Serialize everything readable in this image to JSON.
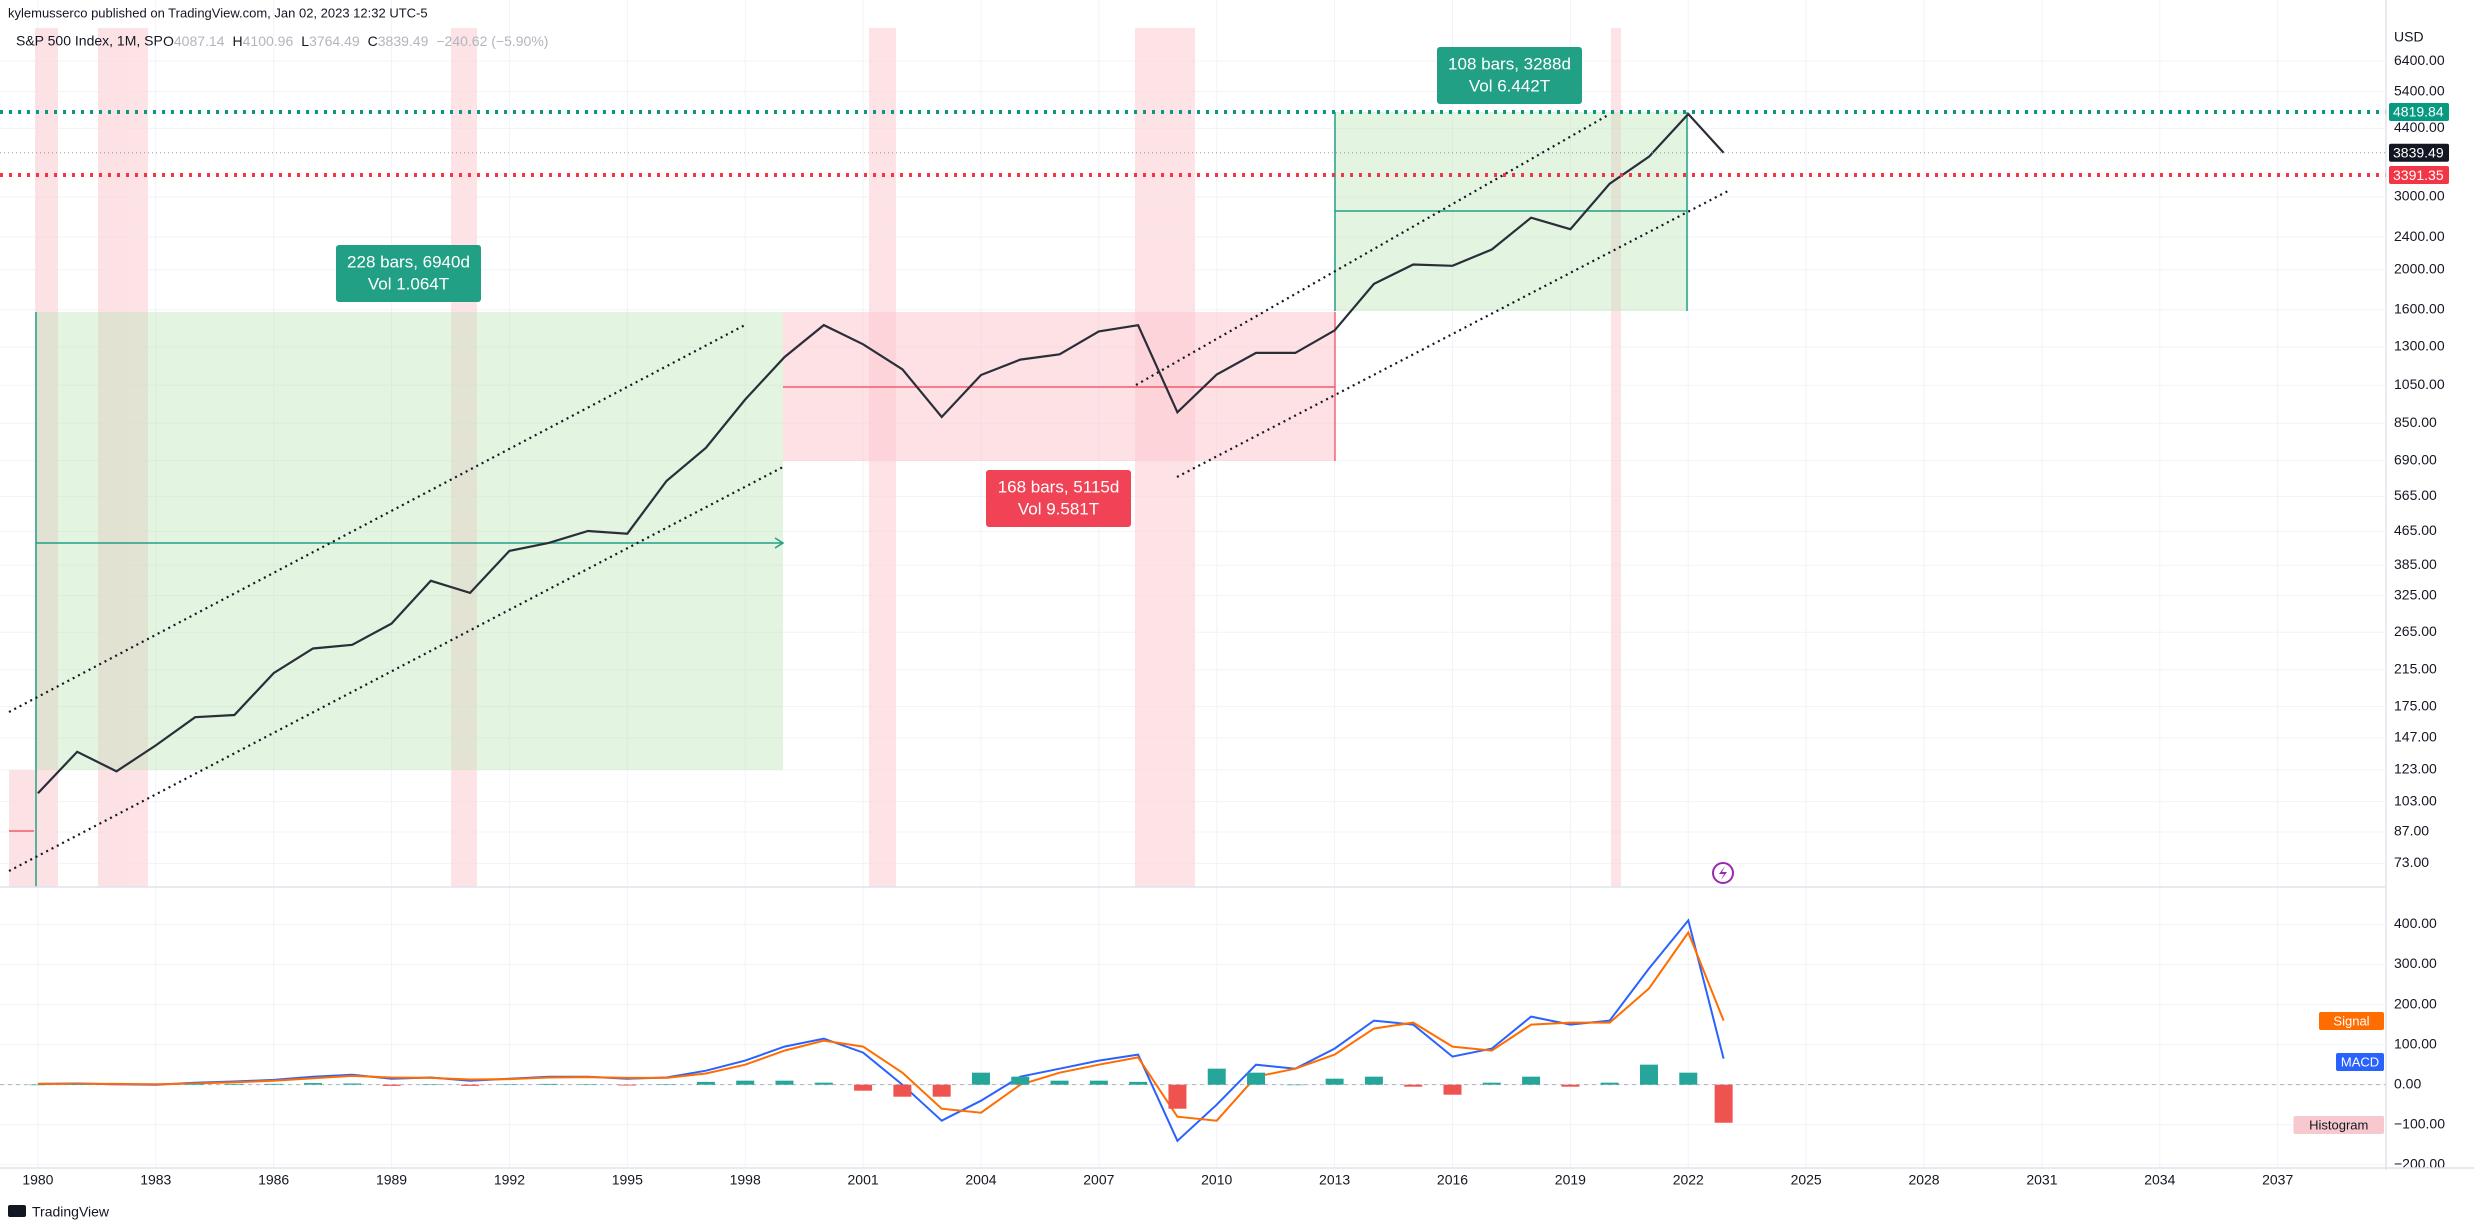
{
  "header": {
    "published": "kylemusserco published on TradingView.com, Jan 02, 2023 12:32 UTC-5",
    "footer": "TradingView"
  },
  "chart_data": [
    {
      "type": "line",
      "title": "S&P 500 Index, 1M, SP",
      "ohlc": [
        {
          "label": "O",
          "value": "4087.14"
        },
        {
          "label": "H",
          "value": "4100.96"
        },
        {
          "label": "L",
          "value": "3764.49"
        },
        {
          "label": "C",
          "value": "3839.49"
        }
      ],
      "change": "−240.62 (−5.90%)",
      "axis_unit": "USD",
      "log_scale": true,
      "grid": true,
      "x": [
        1980,
        1981,
        1982,
        1983,
        1984,
        1985,
        1986,
        1987,
        1988,
        1989,
        1990,
        1991,
        1992,
        1993,
        1994,
        1995,
        1996,
        1997,
        1998,
        1999,
        2000,
        2001,
        2002,
        2003,
        2004,
        2005,
        2006,
        2007,
        2008,
        2009,
        2010,
        2011,
        2012,
        2013,
        2014,
        2015,
        2016,
        2017,
        2018,
        2019,
        2020,
        2021,
        2022,
        2022.9
      ],
      "series": [
        {
          "color": "#2a2e39",
          "values": [
            108,
            136,
            122,
            141,
            165,
            167,
            211,
            242,
            247,
            278,
            353,
            330,
            417,
            436,
            466,
            459,
            616,
            741,
            970,
            1229,
            1469,
            1320,
            1148,
            880,
            1112,
            1212,
            1248,
            1418,
            1468,
            903,
            1115,
            1258,
            1258,
            1426,
            1848,
            2059,
            2044,
            2239,
            2674,
            2507,
            3231,
            3756,
            4766,
            3839.49
          ]
        }
      ],
      "xlim": [
        1979.28,
        2039.68
      ],
      "xticks": [
        1980,
        1983,
        1986,
        1989,
        1992,
        1995,
        1998,
        2001,
        2004,
        2007,
        2010,
        2013,
        2016,
        2019,
        2022,
        2025,
        2028,
        2031,
        2034,
        2037
      ],
      "ylim": [
        64,
        7700
      ],
      "yticks": [
        {
          "value": 6400,
          "label": "6400.00"
        },
        {
          "value": 5400,
          "label": "5400.00"
        },
        {
          "value": 4400,
          "label": "4400.00"
        },
        {
          "value": 3000,
          "label": "3000.00"
        },
        {
          "value": 2400,
          "label": "2400.00"
        },
        {
          "value": 2000,
          "label": "2000.00"
        },
        {
          "value": 1600,
          "label": "1600.00"
        },
        {
          "value": 1300,
          "label": "1300.00"
        },
        {
          "value": 1050,
          "label": "1050.00"
        },
        {
          "value": 850,
          "label": "850.00"
        },
        {
          "value": 690,
          "label": "690.00"
        },
        {
          "value": 565,
          "label": "565.00"
        },
        {
          "value": 465,
          "label": "465.00"
        },
        {
          "value": 385,
          "label": "385.00"
        },
        {
          "value": 325,
          "label": "325.00"
        },
        {
          "value": 265,
          "label": "265.00"
        },
        {
          "value": 215,
          "label": "215.00"
        },
        {
          "value": 175,
          "label": "175.00"
        },
        {
          "value": 147,
          "label": "147.00"
        },
        {
          "value": 123,
          "label": "123.00"
        },
        {
          "value": 103,
          "label": "103.00"
        },
        {
          "value": 87,
          "label": "87.00"
        },
        {
          "value": 73,
          "label": "73.00"
        }
      ],
      "price_lines": [
        {
          "value": 4819.84,
          "color": "#089981"
        },
        {
          "value": 3839.49,
          "color": "#131722"
        },
        {
          "value": 3391.35,
          "color": "#f23645"
        }
      ],
      "annotations": [
        {
          "text": "228 bars, 6940d",
          "volume": "Vol 1.064T",
          "color": "#22a085"
        },
        {
          "text": "168 bars, 5115d",
          "volume": "Vol 9.581T",
          "color": "#f04456"
        },
        {
          "text": "108 bars, 3288d",
          "volume": "Vol 6.442T",
          "color": "#22a085"
        }
      ]
    },
    {
      "type": "macd",
      "x": [
        1980,
        1981,
        1982,
        1983,
        1984,
        1985,
        1986,
        1987,
        1988,
        1989,
        1990,
        1991,
        1992,
        1993,
        1994,
        1995,
        1996,
        1997,
        1998,
        1999,
        2000,
        2001,
        2002,
        2003,
        2004,
        2005,
        2006,
        2007,
        2008,
        2009,
        2010,
        2011,
        2012,
        2013,
        2014,
        2015,
        2016,
        2017,
        2018,
        2019,
        2020,
        2021,
        2022,
        2022.9
      ],
      "xlim": [
        1979.28,
        2039.68
      ],
      "series": [
        {
          "name": "MACD",
          "color": "#2962ff",
          "values": [
            2,
            3,
            1,
            0,
            5,
            8,
            12,
            20,
            25,
            15,
            18,
            10,
            15,
            20,
            20,
            15,
            18,
            35,
            60,
            95,
            115,
            80,
            0,
            -90,
            -40,
            20,
            40,
            60,
            75,
            -140,
            -50,
            50,
            40,
            90,
            160,
            150,
            70,
            90,
            170,
            150,
            160,
            290,
            410,
            65
          ]
        },
        {
          "name": "Signal",
          "color": "#ff6d00",
          "values": [
            2,
            2,
            2,
            1,
            3,
            6,
            10,
            16,
            22,
            18,
            17,
            13,
            14,
            18,
            19,
            17,
            17,
            28,
            50,
            85,
            110,
            95,
            30,
            -60,
            -70,
            0,
            30,
            50,
            68,
            -80,
            -90,
            20,
            40,
            75,
            140,
            155,
            95,
            85,
            150,
            155,
            155,
            240,
            380,
            160
          ]
        },
        {
          "name": "Histogram",
          "color": "#f7c9cf",
          "up_color": "#26a69a",
          "down_color": "#ef5350",
          "values": [
            0,
            1,
            -1,
            -1,
            2,
            2,
            2,
            4,
            3,
            -3,
            1,
            -3,
            1,
            2,
            1,
            -2,
            1,
            7,
            10,
            10,
            5,
            -15,
            -30,
            -30,
            30,
            20,
            10,
            10,
            7,
            -60,
            40,
            30,
            0,
            15,
            20,
            -5,
            -25,
            5,
            20,
            -5,
            5,
            50,
            30,
            -95
          ]
        }
      ],
      "ylim": [
        -208,
        491
      ],
      "yticks": [
        {
          "value": 400,
          "label": "400.00"
        },
        {
          "value": 300,
          "label": "300.00"
        },
        {
          "value": 200,
          "label": "200.00"
        },
        {
          "value": 100,
          "label": "100.00"
        },
        {
          "value": 0,
          "label": "0.00"
        },
        {
          "value": -100,
          "label": "−100.00"
        },
        {
          "value": -200,
          "label": "−200.00"
        }
      ]
    }
  ]
}
